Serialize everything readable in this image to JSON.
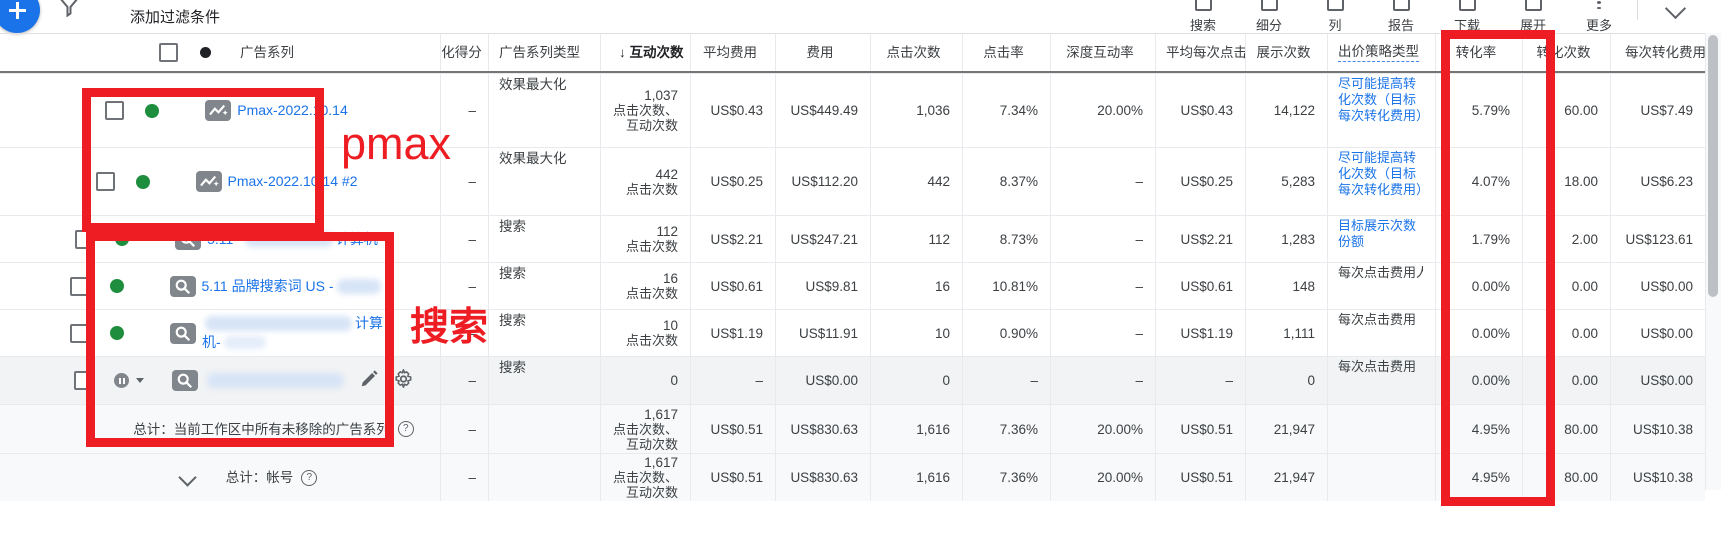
{
  "toolbar": {
    "add_filter_label": "添加过滤条件",
    "tools": [
      {
        "id": "search",
        "label": "搜索"
      },
      {
        "id": "segment",
        "label": "细分"
      },
      {
        "id": "columns",
        "label": "列"
      },
      {
        "id": "report",
        "label": "报告"
      },
      {
        "id": "download",
        "label": "下载"
      },
      {
        "id": "expand",
        "label": "展开"
      },
      {
        "id": "more",
        "label": "更多"
      }
    ]
  },
  "table": {
    "columns": [
      {
        "key": "campaign",
        "label": "广告系列"
      },
      {
        "key": "opt_score",
        "label": "化得分"
      },
      {
        "key": "type",
        "label": "广告系列类型"
      },
      {
        "key": "interactions",
        "label": "↓ 互动次数",
        "sorted": true
      },
      {
        "key": "avg_cost",
        "label": "平均费用"
      },
      {
        "key": "cost",
        "label": "费用"
      },
      {
        "key": "clicks",
        "label": "点击次数"
      },
      {
        "key": "ctr",
        "label": "点击率"
      },
      {
        "key": "engagement_rate",
        "label": "深度互动率"
      },
      {
        "key": "avg_cpc",
        "label": "平均每次点击费用"
      },
      {
        "key": "impressions",
        "label": "展示次数"
      },
      {
        "key": "bid_strategy",
        "label": "出价策略类型",
        "dotted": true
      },
      {
        "key": "conv_rate",
        "label": "转化率"
      },
      {
        "key": "conversions",
        "label": "转化次数"
      },
      {
        "key": "cost_per_conv",
        "label": "每次转化费用"
      }
    ],
    "rows": [
      {
        "status": "enabled",
        "icon": "pmax",
        "name_lines": [
          [
            {
              "t": "Pmax-2022.10.14"
            }
          ]
        ],
        "opt_score": "–",
        "type": "效果最大化",
        "interactions": [
          "1,037",
          "点击次数、",
          "互动次数"
        ],
        "avg_cost": "US$0.43",
        "cost": "US$449.49",
        "clicks": "1,036",
        "ctr": "7.34%",
        "engagement_rate": "20.00%",
        "avg_cpc": "US$0.43",
        "impressions": "14,122",
        "bid_strategy": {
          "text": "尽可能提高转化次数（目标每次转化费用）",
          "link": true,
          "clip": false
        },
        "conv_rate": "5.79%",
        "conversions": "60.00",
        "cost_per_conv": "US$7.49"
      },
      {
        "status": "enabled",
        "icon": "pmax",
        "name_lines": [
          [
            {
              "t": "Pmax-2022.10.14 #2"
            }
          ]
        ],
        "opt_score": "–",
        "type": "效果最大化",
        "interactions": [
          "442",
          "点击次数"
        ],
        "avg_cost": "US$0.25",
        "cost": "US$112.20",
        "clicks": "442",
        "ctr": "8.37%",
        "engagement_rate": "–",
        "avg_cpc": "US$0.25",
        "impressions": "5,283",
        "bid_strategy": {
          "text": "尽可能提高转化次数（目标每次转化费用）",
          "link": true,
          "clip": false
        },
        "conv_rate": "4.07%",
        "conversions": "18.00",
        "cost_per_conv": "US$6.23"
      },
      {
        "status": "enabled",
        "icon": "search",
        "name_lines": [
          [
            {
              "t": "5.11 ·"
            },
            {
              "b": 88
            },
            {
              "t": "计算机"
            }
          ]
        ],
        "opt_score": "–",
        "type": "搜索",
        "interactions": [
          "112",
          "点击次数"
        ],
        "avg_cost": "US$2.21",
        "cost": "US$247.21",
        "clicks": "112",
        "ctr": "8.73%",
        "engagement_rate": "–",
        "avg_cpc": "US$2.21",
        "impressions": "1,283",
        "bid_strategy": {
          "text": "目标展示次数份额",
          "link": true,
          "clip": false
        },
        "conv_rate": "1.79%",
        "conversions": "2.00",
        "cost_per_conv": "US$123.61"
      },
      {
        "status": "enabled",
        "icon": "search",
        "name_lines": [
          [
            {
              "t": "5.11 品牌搜索词 US -"
            },
            {
              "b": 44
            }
          ]
        ],
        "opt_score": "–",
        "type": "搜索",
        "interactions": [
          "16",
          "点击次数"
        ],
        "avg_cost": "US$0.61",
        "cost": "US$9.81",
        "clicks": "16",
        "ctr": "10.81%",
        "engagement_rate": "–",
        "avg_cpc": "US$0.61",
        "impressions": "148",
        "bid_strategy": {
          "text": "每次点击费用人工出价",
          "link": false,
          "clip": true
        },
        "conv_rate": "0.00%",
        "conversions": "0.00",
        "cost_per_conv": "US$0.00"
      },
      {
        "status": "enabled",
        "icon": "search",
        "name_lines": [
          [
            {
              "b": 147
            },
            {
              "t": "计算"
            }
          ],
          [
            {
              "t": "机-"
            },
            {
              "b": 42,
              "lt": true
            }
          ]
        ],
        "opt_score": "–",
        "type": "搜索",
        "interactions": [
          "10",
          "点击次数"
        ],
        "avg_cost": "US$1.19",
        "cost": "US$11.91",
        "clicks": "10",
        "ctr": "0.90%",
        "engagement_rate": "–",
        "avg_cpc": "US$1.19",
        "impressions": "1,111",
        "bid_strategy": {
          "text": "每次点击费用（增强型）",
          "link": false,
          "clip": true
        },
        "conv_rate": "0.00%",
        "conversions": "0.00",
        "cost_per_conv": "US$0.00"
      },
      {
        "status": "paused",
        "icon": "search",
        "edit_icon": true,
        "gear": true,
        "name_lines": [
          [
            {
              "b": 137
            }
          ]
        ],
        "opt_score": "–",
        "type": "搜索",
        "interactions": [
          "0"
        ],
        "avg_cost": "–",
        "cost": "US$0.00",
        "clicks": "0",
        "ctr": "–",
        "engagement_rate": "–",
        "avg_cpc": "–",
        "impressions": "0",
        "bid_strategy": {
          "text": "每次点击费用（增强型）",
          "link": false,
          "clip": true
        },
        "conv_rate": "0.00%",
        "conversions": "0.00",
        "cost_per_conv": "US$0.00"
      }
    ],
    "totals": [
      {
        "label": "总计：当前工作区中所有未移除的广告系列",
        "help": "?",
        "chevron": false,
        "opt_score": "–",
        "type": "",
        "interactions": [
          "1,617",
          "点击次数、",
          "互动次数"
        ],
        "avg_cost": "US$0.51",
        "cost": "US$830.63",
        "clicks": "1,616",
        "ctr": "7.36%",
        "engagement_rate": "20.00%",
        "avg_cpc": "US$0.51",
        "impressions": "21,947",
        "bid_strategy": {
          "text": "",
          "link": false,
          "clip": false
        },
        "conv_rate": "4.95%",
        "conversions": "80.00",
        "cost_per_conv": "US$10.38"
      },
      {
        "label": "总计：帐号",
        "help": "?",
        "chevron": true,
        "opt_score": "–",
        "type": "",
        "interactions": [
          "1,617",
          "点击次数、",
          "互动次数"
        ],
        "avg_cost": "US$0.51",
        "cost": "US$830.63",
        "clicks": "1,616",
        "ctr": "7.36%",
        "engagement_rate": "20.00%",
        "avg_cpc": "US$0.51",
        "impressions": "21,947",
        "bid_strategy": {
          "text": "",
          "link": false,
          "clip": false
        },
        "conv_rate": "4.95%",
        "conversions": "80.00",
        "cost_per_conv": "US$10.38"
      }
    ]
  },
  "annotations": {
    "pmax": "pmax",
    "search": "搜索"
  },
  "colors": {
    "annotation_red": "#ee1d23",
    "link_blue": "#1a73e8",
    "enabled_green": "#1e8e3e"
  }
}
